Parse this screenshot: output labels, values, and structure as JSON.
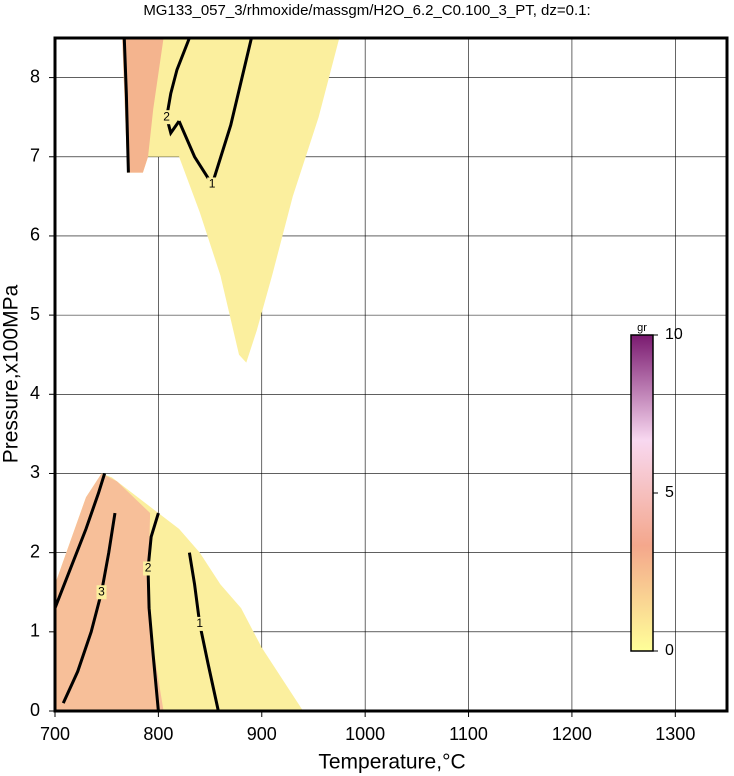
{
  "chart_data": {
    "type": "contour",
    "title": "MG133_057_3/rhmoxide/massgm/H2O_6.2_C0.100_3_PT, dz=0.1:",
    "x_label": "Temperature,°C",
    "y_label": "Pressure,x100MPa",
    "xlim": [
      700,
      1350
    ],
    "ylim": [
      0,
      8.5
    ],
    "xticks": [
      700,
      800,
      900,
      1000,
      1100,
      1200,
      1300
    ],
    "yticks": [
      0,
      1,
      2,
      3,
      4,
      5,
      6,
      7,
      8
    ],
    "grid": true,
    "regions": [
      {
        "color": "#fbef9e",
        "x": [
          765,
          975,
          955,
          930,
          910,
          895,
          885,
          878,
          860,
          840,
          820,
          790,
          785,
          770
        ],
        "y": [
          8.5,
          8.5,
          7.5,
          6.5,
          5.5,
          4.8,
          4.4,
          4.5,
          5.5,
          6.3,
          7.0,
          7.0,
          6.8,
          6.8
        ]
      },
      {
        "color": "#f4b48e",
        "x": [
          765,
          805,
          795,
          790,
          785,
          770
        ],
        "y": [
          8.5,
          8.5,
          7.6,
          7.0,
          6.8,
          6.8
        ]
      },
      {
        "color": "#fbef9e",
        "x": [
          700,
          940,
          925,
          900,
          880,
          860,
          840,
          820,
          790,
          755,
          745,
          730,
          700
        ],
        "y": [
          0,
          0,
          0.3,
          0.8,
          1.3,
          1.6,
          2.0,
          2.3,
          2.6,
          2.95,
          3.0,
          2.7,
          1.6
        ]
      },
      {
        "color": "#f7bf99",
        "x": [
          700,
          805,
          795,
          790,
          792,
          760,
          745,
          730,
          700
        ],
        "y": [
          0,
          0,
          0.8,
          1.5,
          2.5,
          2.9,
          3.0,
          2.7,
          1.6
        ]
      }
    ],
    "contours": [
      {
        "level": 3,
        "x": [
          708,
          722,
          735,
          745,
          752,
          758
        ],
        "y": [
          0.1,
          0.5,
          1.0,
          1.5,
          2.0,
          2.5
        ]
      },
      {
        "level": 2,
        "x": [
          800,
          795,
          791,
          790,
          793,
          800
        ],
        "y": [
          0,
          0.7,
          1.3,
          1.8,
          2.2,
          2.5
        ]
      },
      {
        "level": 1,
        "x": [
          858,
          848,
          840,
          835,
          830
        ],
        "y": [
          0,
          0.6,
          1.1,
          1.6,
          2.0
        ]
      },
      {
        "level": 2,
        "x": [
          830,
          818,
          812,
          808,
          812,
          820
        ],
        "y": [
          8.5,
          8.1,
          7.8,
          7.5,
          7.3,
          7.45
        ]
      },
      {
        "level": 1,
        "x": [
          820,
          835,
          852,
          870,
          890
        ],
        "y": [
          7.45,
          7.0,
          6.65,
          7.4,
          8.5
        ]
      },
      {
        "x": [
          767,
          769,
          770,
          771
        ],
        "y": [
          8.5,
          7.8,
          7.3,
          6.8
        ]
      },
      {
        "x": [
          700,
          715,
          730,
          742,
          748
        ],
        "y": [
          1.3,
          1.8,
          2.3,
          2.75,
          3.0
        ]
      }
    ],
    "colorbar": {
      "label": "gr",
      "lim": [
        0,
        10
      ],
      "ticks": [
        0,
        5,
        10
      ],
      "colors": [
        "#ffff99",
        "#f4a78c",
        "#f8d8f0",
        "#7a1a70"
      ]
    }
  }
}
